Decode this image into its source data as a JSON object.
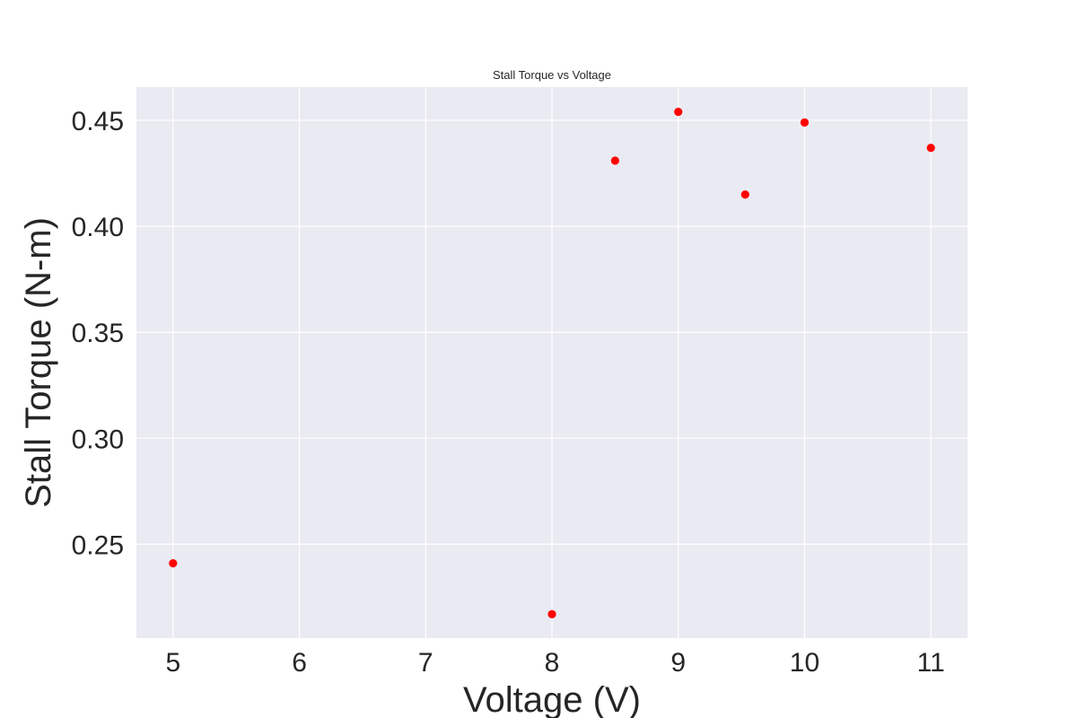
{
  "chart_data": {
    "type": "scatter",
    "title": "Stall Torque vs Voltage",
    "xlabel": "Voltage (V)",
    "ylabel": "Stall Torque (N-m)",
    "x": [
      5,
      8,
      8.5,
      9,
      9.53,
      10,
      11
    ],
    "y": [
      0.241,
      0.217,
      0.431,
      0.454,
      0.415,
      0.449,
      0.437
    ],
    "xlim": [
      4.71,
      11.29
    ],
    "ylim": [
      0.2057,
      0.4657
    ],
    "xticks": [
      5,
      6,
      7,
      8,
      9,
      10,
      11
    ],
    "yticks": [
      0.25,
      0.3,
      0.35,
      0.4,
      0.45
    ],
    "yticks_text": [
      "0.25",
      "0.30",
      "0.35",
      "0.40",
      "0.45"
    ],
    "grid": true,
    "legend": "none",
    "colors": {
      "marker": "#ff0000",
      "plot_bg": "#eaeaf2",
      "grid": "#ffffff",
      "text": "#262626"
    }
  }
}
